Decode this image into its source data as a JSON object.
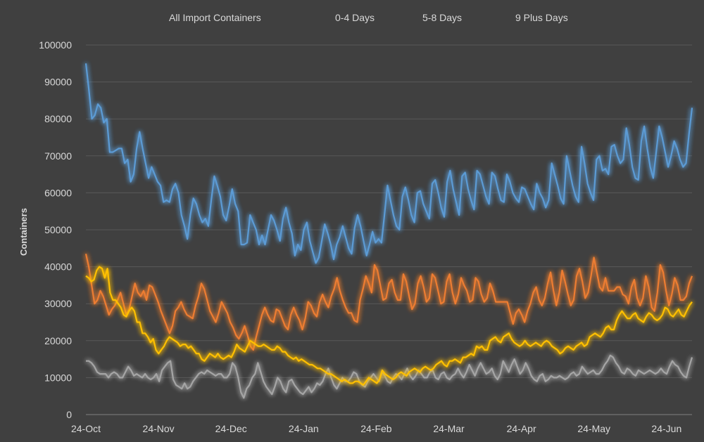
{
  "chart_data": {
    "type": "line",
    "title": "",
    "xlabel": "",
    "ylabel": "Containers",
    "ylim": [
      0,
      100000
    ],
    "yticks": [
      "0",
      "10000",
      "20000",
      "30000",
      "40000",
      "50000",
      "60000",
      "70000",
      "80000",
      "90000",
      "100000"
    ],
    "xticks": [
      "24-Oct",
      "24-Nov",
      "24-Dec",
      "24-Jan",
      "24-Feb",
      "24-Mar",
      "24-Apr",
      "24-May",
      "24-Jun"
    ],
    "grid": "horizontal",
    "legend_position": "top",
    "series": [
      {
        "name": "All Import Containers",
        "color": "#5b9bd5",
        "values": [
          95000,
          88000,
          80000,
          81000,
          84000,
          83000,
          79000,
          80000,
          71000,
          71000,
          71500,
          72000,
          72000,
          68000,
          69000,
          63000,
          65000,
          72000,
          76500,
          72000,
          68000,
          64000,
          67000,
          65000,
          63000,
          62000,
          57500,
          58000,
          57500,
          61000,
          62500,
          60000,
          54000,
          51000,
          47500,
          54000,
          58500,
          57000,
          54000,
          52000,
          53000,
          51000,
          58000,
          64500,
          62000,
          59000,
          54000,
          52500,
          56500,
          61000,
          57000,
          55000,
          46000,
          46000,
          46500,
          54000,
          52000,
          50000,
          46000,
          48500,
          46000,
          50000,
          54000,
          52500,
          50000,
          47000,
          53000,
          56000,
          52000,
          49000,
          43000,
          46000,
          44500,
          50000,
          52000,
          47000,
          44000,
          41000,
          42500,
          47000,
          51500,
          49000,
          46000,
          42000,
          46000,
          48000,
          51000,
          48000,
          45000,
          43500,
          50500,
          54000,
          51000,
          47000,
          43000,
          46000,
          49500,
          46500,
          47500,
          46500,
          54000,
          62000,
          58000,
          54000,
          51000,
          50000,
          59000,
          61500,
          58000,
          54000,
          52000,
          60000,
          60500,
          57000,
          55000,
          53000,
          62500,
          63500,
          60000,
          56000,
          53500,
          63000,
          66000,
          61000,
          57500,
          54000,
          64500,
          65500,
          61000,
          58000,
          55500,
          66000,
          65000,
          62000,
          59000,
          57000,
          65500,
          64500,
          61000,
          58000,
          57500,
          65000,
          63000,
          60000,
          58500,
          57500,
          61500,
          61000,
          59000,
          57000,
          55500,
          62500,
          60000,
          58500,
          56000,
          58000,
          68000,
          65000,
          62000,
          58500,
          57000,
          70000,
          66000,
          62000,
          59000,
          57500,
          72500,
          68000,
          62500,
          60000,
          58000,
          69000,
          70000,
          66000,
          66500,
          65000,
          72500,
          73000,
          70000,
          68000,
          69000,
          77500,
          73000,
          67000,
          64000,
          63500,
          74000,
          78000,
          72000,
          67000,
          64000,
          71000,
          78000,
          75000,
          71000,
          67000,
          70000,
          74000,
          72000,
          69000,
          67000,
          68000,
          76000,
          83000
        ]
      },
      {
        "name": "0-4 Days",
        "color": "#ed7d31",
        "values": [
          43500,
          40000,
          35000,
          30000,
          31000,
          33500,
          32000,
          29500,
          27000,
          28500,
          29500,
          31000,
          33000,
          30000,
          27000,
          28500,
          32000,
          35500,
          33000,
          32000,
          33500,
          31000,
          35000,
          34500,
          32500,
          30500,
          28000,
          26000,
          24000,
          22000,
          24000,
          28000,
          29000,
          30500,
          28500,
          27000,
          26500,
          26000,
          29500,
          32000,
          35500,
          34000,
          31000,
          28000,
          26500,
          25000,
          27500,
          30500,
          29000,
          27500,
          25000,
          23500,
          21500,
          20500,
          22000,
          24000,
          21500,
          18500,
          17500,
          21000,
          24000,
          27000,
          29000,
          27000,
          25500,
          25000,
          28500,
          28000,
          26000,
          24000,
          23000,
          27000,
          29000,
          27000,
          25500,
          23000,
          26000,
          30500,
          29500,
          27500,
          26500,
          30500,
          32500,
          30500,
          29000,
          32000,
          34000,
          37000,
          33500,
          31000,
          29000,
          27500,
          27500,
          25500,
          25000,
          31000,
          34000,
          37500,
          35500,
          33000,
          40500,
          39000,
          35000,
          31000,
          31500,
          35500,
          36500,
          33000,
          31000,
          31000,
          38000,
          36000,
          32000,
          28500,
          30000,
          35500,
          37500,
          34500,
          30500,
          31500,
          38000,
          37000,
          33500,
          30000,
          30500,
          36000,
          38000,
          33000,
          30000,
          32500,
          37000,
          35000,
          33500,
          30500,
          31000,
          37000,
          36000,
          32500,
          30500,
          31500,
          35500,
          33500,
          30500,
          30500,
          30500,
          30500,
          30500,
          27500,
          24500,
          27500,
          28500,
          27000,
          25000,
          28000,
          30000,
          33000,
          34500,
          31000,
          29500,
          31500,
          35500,
          38500,
          33500,
          29500,
          33000,
          39000,
          36000,
          32500,
          29500,
          31000,
          37500,
          39500,
          36000,
          31500,
          33000,
          37500,
          42500,
          38500,
          34500,
          33500,
          37000,
          33500,
          33500,
          33500,
          34500,
          34500,
          32500,
          32000,
          30000,
          34500,
          36500,
          31500,
          29500,
          31500,
          37500,
          34500,
          29000,
          28000,
          33000,
          40500,
          38500,
          33500,
          29500,
          32500,
          37000,
          35000,
          31000,
          31000,
          32000,
          35500,
          37500
        ]
      },
      {
        "name": "5-8 Days",
        "color": "#a5a5a5",
        "values": [
          14500,
          14500,
          14000,
          13000,
          11500,
          11000,
          11000,
          11000,
          10000,
          11000,
          11500,
          11000,
          10000,
          10000,
          11500,
          13000,
          12000,
          10500,
          11000,
          10500,
          10000,
          11000,
          10000,
          9500,
          10000,
          11000,
          9000,
          12000,
          13000,
          14000,
          14500,
          9500,
          8000,
          7500,
          7000,
          8500,
          7000,
          7500,
          9000,
          10000,
          11000,
          11500,
          11000,
          12000,
          11500,
          11000,
          10500,
          11000,
          11000,
          10000,
          10000,
          11000,
          14000,
          13000,
          10000,
          6000,
          4500,
          7000,
          8000,
          10000,
          11000,
          14000,
          11500,
          9000,
          7500,
          6500,
          5500,
          7500,
          10000,
          9000,
          7000,
          6000,
          9000,
          9500,
          8000,
          7000,
          6000,
          5500,
          6500,
          7500,
          6000,
          7000,
          8500,
          8000,
          9000,
          11000,
          12500,
          10000,
          8000,
          7000,
          8500,
          10000,
          9000,
          9000,
          10000,
          11500,
          11000,
          9000,
          8000,
          7500,
          9000,
          10000,
          11000,
          10000,
          9000,
          11500,
          10500,
          9000,
          8500,
          10000,
          11000,
          10500,
          9500,
          11000,
          12500,
          10500,
          9500,
          10500,
          12000,
          11000,
          10000,
          10000,
          11500,
          12000,
          10000,
          9500,
          11000,
          11500,
          10000,
          9500,
          10500,
          11000,
          12500,
          11000,
          10000,
          11500,
          13500,
          12000,
          10500,
          12500,
          14000,
          12500,
          11000,
          11500,
          12500,
          10500,
          9500,
          11000,
          14500,
          13000,
          11500,
          13500,
          15000,
          13000,
          11000,
          12000,
          14000,
          12500,
          10500,
          9500,
          9000,
          10500,
          11000,
          9000,
          9500,
          10500,
          10000,
          10000,
          10500,
          10000,
          9500,
          10000,
          11000,
          11500,
          10500,
          11000,
          13000,
          12000,
          11000,
          11500,
          12000,
          11000,
          11000,
          12000,
          13500,
          14500,
          16000,
          15500,
          14000,
          13000,
          11500,
          11000,
          12500,
          12000,
          11000,
          10500,
          12000,
          11500,
          11000,
          11500,
          12000,
          11500,
          11000,
          11500,
          12500,
          11500,
          11000,
          13000,
          14500,
          13500,
          13000,
          11500,
          10500,
          10000,
          13000,
          15500
        ]
      },
      {
        "name": "9 Plus Days",
        "color": "#ffc000",
        "values": [
          37500,
          37000,
          36000,
          36500,
          39000,
          40000,
          39500,
          37000,
          39500,
          33000,
          31000,
          31000,
          30000,
          29000,
          27000,
          26500,
          28000,
          29000,
          28000,
          25000,
          25000,
          22000,
          22000,
          21000,
          19500,
          20500,
          17500,
          16500,
          17500,
          18500,
          20000,
          21000,
          20500,
          20000,
          19500,
          18500,
          19000,
          19000,
          18000,
          18500,
          17500,
          16500,
          16500,
          15000,
          14500,
          15500,
          16500,
          16000,
          15500,
          16500,
          15500,
          15000,
          15500,
          16000,
          15500,
          17000,
          19000,
          18000,
          17500,
          17000,
          18500,
          20000,
          19500,
          19000,
          18500,
          18500,
          19000,
          18500,
          18000,
          17500,
          17500,
          18500,
          18000,
          17000,
          17000,
          16000,
          15500,
          15000,
          15500,
          14500,
          15000,
          14500,
          14000,
          13500,
          13500,
          13000,
          12500,
          12500,
          12000,
          11500,
          11000,
          11000,
          10500,
          10000,
          9500,
          9000,
          9500,
          9000,
          8500,
          8500,
          9000,
          9000,
          8500,
          8000,
          9000,
          10000,
          9500,
          9000,
          8500,
          9500,
          12000,
          11000,
          10500,
          10000,
          9500,
          10000,
          11000,
          11500,
          11000,
          10500,
          11500,
          12000,
          12500,
          12000,
          11500,
          12500,
          13000,
          12500,
          12000,
          12500,
          13500,
          14000,
          14500,
          13500,
          13000,
          14500,
          14500,
          15000,
          14500,
          14000,
          15500,
          15500,
          16000,
          16500,
          16000,
          18500,
          18000,
          18500,
          17500,
          17500,
          20000,
          20500,
          21000,
          20000,
          19500,
          21000,
          21500,
          22000,
          20500,
          19500,
          19000,
          18500,
          19000,
          20000,
          19000,
          18500,
          19000,
          19500,
          19000,
          18500,
          19500,
          20000,
          19500,
          18500,
          18000,
          17500,
          16500,
          17000,
          18000,
          18500,
          18000,
          17500,
          18500,
          19000,
          19500,
          18500,
          19000,
          21000,
          21500,
          22000,
          21500,
          21000,
          22000,
          23500,
          24000,
          23000,
          23000,
          25500,
          27000,
          28000,
          27000,
          26000,
          26000,
          27000,
          27500,
          26000,
          25500,
          25000,
          26500,
          27500,
          27000,
          26000,
          25500,
          26000,
          27000,
          29000,
          28500,
          27000,
          26500,
          27500,
          28500,
          27000,
          26500,
          28000,
          29500,
          30500
        ]
      }
    ]
  }
}
